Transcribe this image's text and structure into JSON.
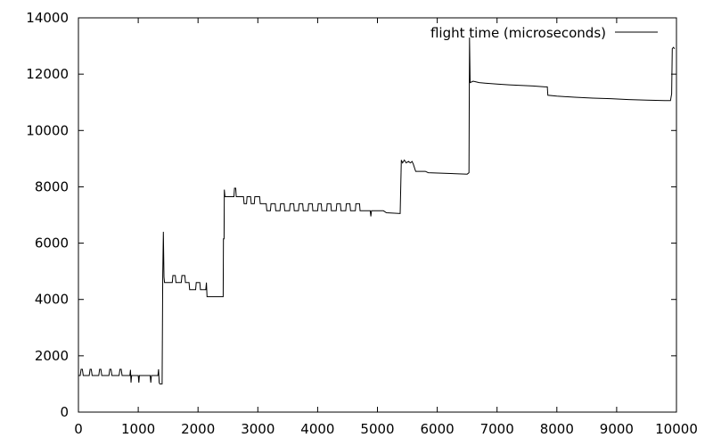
{
  "chart_data": {
    "type": "line",
    "title": "",
    "xlabel": "",
    "ylabel": "",
    "xlim": [
      0,
      10000
    ],
    "ylim": [
      0,
      14000
    ],
    "x_ticks": [
      0,
      1000,
      2000,
      3000,
      4000,
      5000,
      6000,
      7000,
      8000,
      9000,
      10000
    ],
    "y_ticks": [
      0,
      2000,
      4000,
      6000,
      8000,
      10000,
      12000,
      14000
    ],
    "grid": false,
    "legend_position": "top-right",
    "line_color": "#000000",
    "series": [
      {
        "name": "flight time (microseconds)",
        "points": [
          [
            0,
            1300
          ],
          [
            30,
            1300
          ],
          [
            45,
            1520
          ],
          [
            65,
            1520
          ],
          [
            80,
            1300
          ],
          [
            180,
            1300
          ],
          [
            195,
            1520
          ],
          [
            215,
            1520
          ],
          [
            230,
            1300
          ],
          [
            340,
            1300
          ],
          [
            355,
            1520
          ],
          [
            375,
            1520
          ],
          [
            390,
            1300
          ],
          [
            510,
            1300
          ],
          [
            525,
            1520
          ],
          [
            545,
            1520
          ],
          [
            560,
            1300
          ],
          [
            680,
            1300
          ],
          [
            695,
            1520
          ],
          [
            715,
            1520
          ],
          [
            730,
            1300
          ],
          [
            860,
            1300
          ],
          [
            870,
            1500
          ],
          [
            880,
            1050
          ],
          [
            890,
            1300
          ],
          [
            1000,
            1300
          ],
          [
            1010,
            1050
          ],
          [
            1020,
            1300
          ],
          [
            1200,
            1300
          ],
          [
            1210,
            1050
          ],
          [
            1220,
            1300
          ],
          [
            1330,
            1300
          ],
          [
            1340,
            1520
          ],
          [
            1350,
            1050
          ],
          [
            1360,
            1000
          ],
          [
            1400,
            1000
          ],
          [
            1410,
            4850
          ],
          [
            1420,
            6400
          ],
          [
            1430,
            4800
          ],
          [
            1440,
            4600
          ],
          [
            1570,
            4600
          ],
          [
            1580,
            4850
          ],
          [
            1620,
            4850
          ],
          [
            1630,
            4600
          ],
          [
            1720,
            4600
          ],
          [
            1730,
            4850
          ],
          [
            1780,
            4850
          ],
          [
            1790,
            4600
          ],
          [
            1850,
            4600
          ],
          [
            1860,
            4350
          ],
          [
            1960,
            4350
          ],
          [
            1970,
            4600
          ],
          [
            2030,
            4600
          ],
          [
            2040,
            4350
          ],
          [
            2130,
            4350
          ],
          [
            2140,
            4600
          ],
          [
            2150,
            4100
          ],
          [
            2420,
            4100
          ],
          [
            2425,
            6150
          ],
          [
            2435,
            6150
          ],
          [
            2440,
            7900
          ],
          [
            2450,
            7650
          ],
          [
            2600,
            7650
          ],
          [
            2610,
            7950
          ],
          [
            2630,
            7950
          ],
          [
            2640,
            7650
          ],
          [
            2760,
            7650
          ],
          [
            2770,
            7400
          ],
          [
            2810,
            7400
          ],
          [
            2820,
            7650
          ],
          [
            2880,
            7650
          ],
          [
            2890,
            7400
          ],
          [
            2940,
            7400
          ],
          [
            2950,
            7650
          ],
          [
            3030,
            7650
          ],
          [
            3040,
            7400
          ],
          [
            3140,
            7400
          ],
          [
            3150,
            7150
          ],
          [
            3210,
            7150
          ],
          [
            3220,
            7400
          ],
          [
            3290,
            7400
          ],
          [
            3300,
            7150
          ],
          [
            3370,
            7150
          ],
          [
            3380,
            7400
          ],
          [
            3440,
            7400
          ],
          [
            3450,
            7150
          ],
          [
            3530,
            7150
          ],
          [
            3540,
            7400
          ],
          [
            3600,
            7400
          ],
          [
            3610,
            7150
          ],
          [
            3680,
            7150
          ],
          [
            3690,
            7400
          ],
          [
            3750,
            7400
          ],
          [
            3760,
            7150
          ],
          [
            3840,
            7150
          ],
          [
            3850,
            7400
          ],
          [
            3910,
            7400
          ],
          [
            3920,
            7150
          ],
          [
            4000,
            7150
          ],
          [
            4010,
            7400
          ],
          [
            4060,
            7400
          ],
          [
            4070,
            7150
          ],
          [
            4150,
            7150
          ],
          [
            4160,
            7400
          ],
          [
            4220,
            7400
          ],
          [
            4230,
            7150
          ],
          [
            4310,
            7150
          ],
          [
            4320,
            7400
          ],
          [
            4380,
            7400
          ],
          [
            4390,
            7150
          ],
          [
            4470,
            7150
          ],
          [
            4480,
            7400
          ],
          [
            4540,
            7400
          ],
          [
            4550,
            7150
          ],
          [
            4630,
            7150
          ],
          [
            4640,
            7400
          ],
          [
            4700,
            7400
          ],
          [
            4710,
            7150
          ],
          [
            4880,
            7150
          ],
          [
            4890,
            6950
          ],
          [
            4900,
            7150
          ],
          [
            5100,
            7150
          ],
          [
            5150,
            7080
          ],
          [
            5380,
            7050
          ],
          [
            5400,
            8950
          ],
          [
            5420,
            8850
          ],
          [
            5450,
            8950
          ],
          [
            5480,
            8850
          ],
          [
            5520,
            8900
          ],
          [
            5550,
            8850
          ],
          [
            5580,
            8900
          ],
          [
            5600,
            8800
          ],
          [
            5640,
            8550
          ],
          [
            5800,
            8550
          ],
          [
            5850,
            8500
          ],
          [
            6500,
            8450
          ],
          [
            6530,
            8500
          ],
          [
            6540,
            13300
          ],
          [
            6550,
            11700
          ],
          [
            6600,
            11750
          ],
          [
            6700,
            11700
          ],
          [
            6800,
            11680
          ],
          [
            7000,
            11650
          ],
          [
            7200,
            11620
          ],
          [
            7400,
            11600
          ],
          [
            7600,
            11580
          ],
          [
            7800,
            11550
          ],
          [
            7840,
            11550
          ],
          [
            7850,
            11250
          ],
          [
            8000,
            11220
          ],
          [
            8300,
            11180
          ],
          [
            8600,
            11150
          ],
          [
            8900,
            11130
          ],
          [
            9200,
            11100
          ],
          [
            9500,
            11080
          ],
          [
            9800,
            11060
          ],
          [
            9900,
            11060
          ],
          [
            9920,
            11300
          ],
          [
            9930,
            12900
          ],
          [
            9950,
            12950
          ],
          [
            9970,
            12900
          ]
        ]
      }
    ]
  }
}
